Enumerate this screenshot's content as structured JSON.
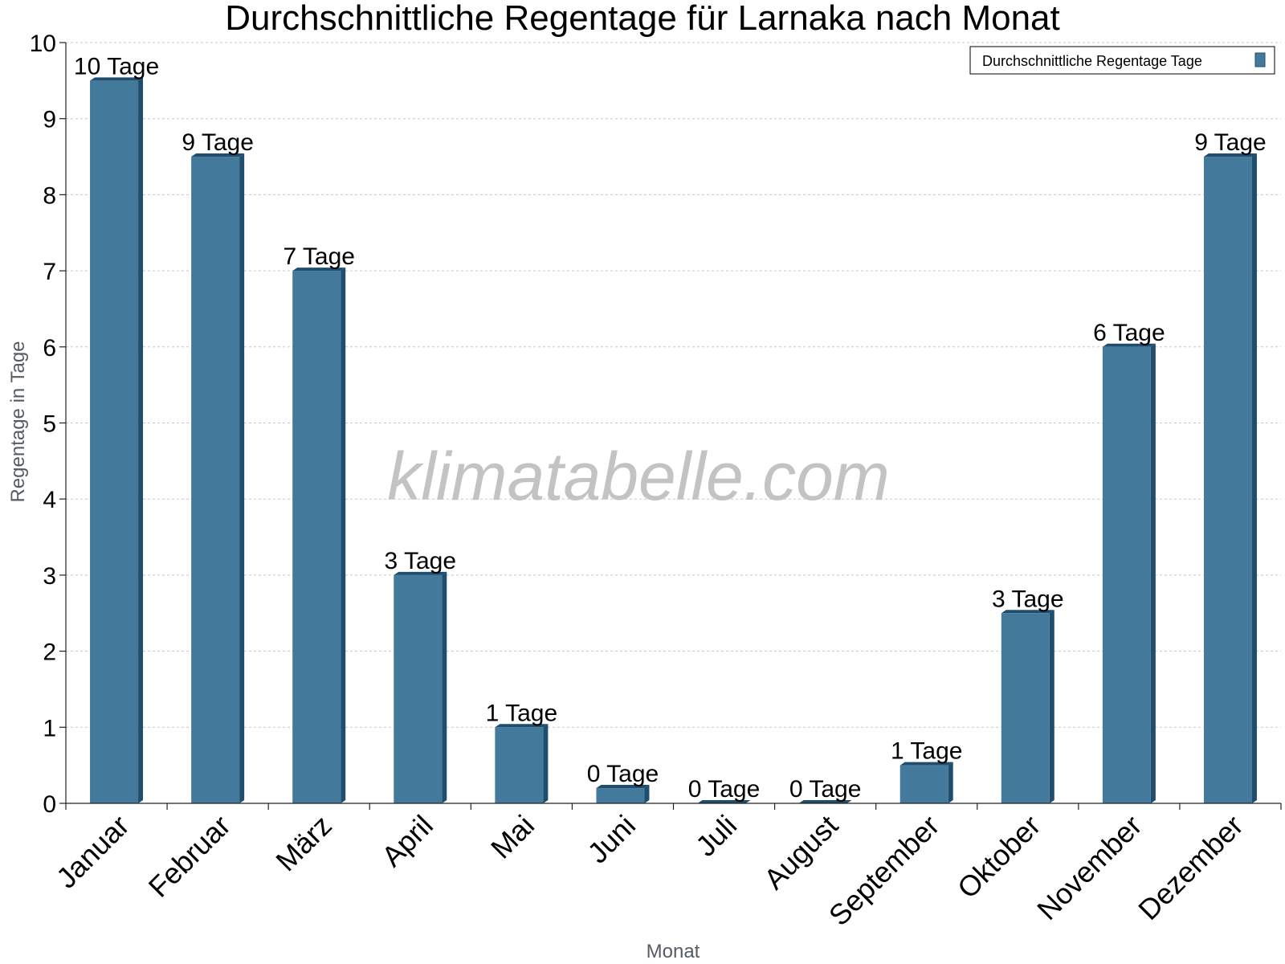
{
  "chart_data": {
    "type": "bar",
    "title": "Durchschnittliche Regentage für Larnaka nach Monat",
    "xlabel": "Monat",
    "ylabel": "Regentage in Tage",
    "ylim": [
      0,
      10
    ],
    "yticks": [
      0,
      1,
      2,
      3,
      4,
      5,
      6,
      7,
      8,
      9,
      10
    ],
    "grid": true,
    "legend_position": "top-right",
    "categories": [
      "Januar",
      "Februar",
      "März",
      "April",
      "Mai",
      "Juni",
      "Juli",
      "August",
      "September",
      "Oktober",
      "November",
      "Dezember"
    ],
    "series": [
      {
        "name": "Durchschnittliche Regentage Tage",
        "color": "#437a9c",
        "values": [
          9.5,
          8.5,
          7.0,
          3.0,
          1.0,
          0.2,
          0.0,
          0.0,
          0.5,
          2.5,
          6.0,
          8.5
        ],
        "labels": [
          "10 Tage",
          "9 Tage",
          "7 Tage",
          "3 Tage",
          "1 Tage",
          "0 Tage",
          "0 Tage",
          "0 Tage",
          "1 Tage",
          "3 Tage",
          "6 Tage",
          "9 Tage"
        ]
      }
    ],
    "watermark": "klimatabelle.com"
  }
}
